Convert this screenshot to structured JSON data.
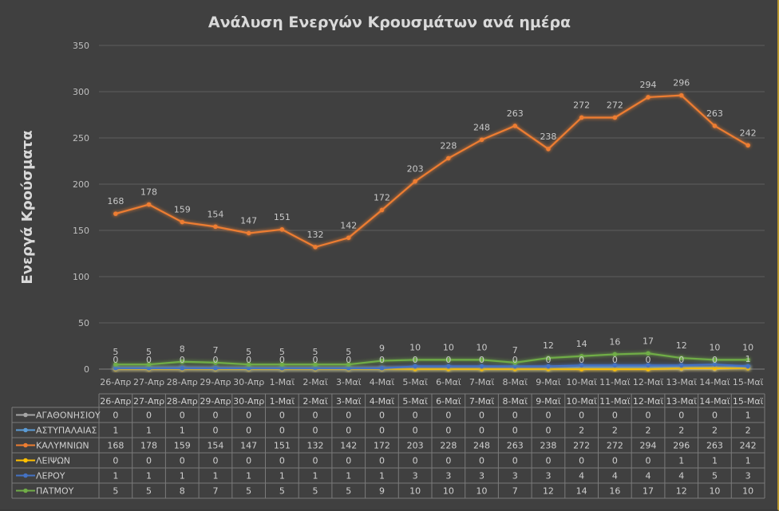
{
  "chart_data": {
    "type": "line",
    "title": "Ανάλυση Ενεργών Κρουσμάτων ανά ημέρα",
    "xlabel": "",
    "ylabel": "Ενεργά Κρούσματα",
    "ylim": [
      0,
      350
    ],
    "yticks": [
      0,
      50,
      100,
      150,
      200,
      250,
      300,
      350
    ],
    "grid": true,
    "legend": "data-table-below",
    "categories": [
      "26-Απρ",
      "27-Απρ",
      "28-Απρ",
      "29-Απρ",
      "30-Απρ",
      "1-Μαϊ",
      "2-Μαϊ",
      "3-Μαϊ",
      "4-Μαϊ",
      "5-Μαϊ",
      "6-Μαϊ",
      "7-Μαϊ",
      "8-Μαϊ",
      "9-Μαϊ",
      "10-Μαϊ",
      "11-Μαϊ",
      "12-Μαϊ",
      "13-Μαϊ",
      "14-Μαϊ",
      "15-Μαϊ"
    ],
    "series": [
      {
        "name": "ΑΓΑΘΟΝΗΣΙΟΥ",
        "color": "#a6a6a6",
        "labels": true,
        "values": [
          0,
          0,
          0,
          0,
          0,
          0,
          0,
          0,
          0,
          0,
          0,
          0,
          0,
          0,
          0,
          0,
          0,
          0,
          0,
          1
        ]
      },
      {
        "name": "ΑΣΤΥΠΑΛΑΙΑΣ",
        "color": "#5b9bd5",
        "labels": false,
        "values": [
          1,
          1,
          1,
          0,
          0,
          0,
          0,
          0,
          0,
          0,
          0,
          0,
          0,
          0,
          2,
          2,
          2,
          2,
          2,
          2
        ]
      },
      {
        "name": "ΚΑΛΥΜΝΙΩΝ",
        "color": "#ed7d31",
        "labels": true,
        "values": [
          168,
          178,
          159,
          154,
          147,
          151,
          132,
          142,
          172,
          203,
          228,
          248,
          263,
          238,
          272,
          272,
          294,
          296,
          263,
          242
        ]
      },
      {
        "name": "ΛΕΙΨΩΝ",
        "color": "#ffc000",
        "labels": false,
        "values": [
          0,
          0,
          0,
          0,
          0,
          0,
          0,
          0,
          0,
          0,
          0,
          0,
          0,
          0,
          0,
          0,
          0,
          1,
          1,
          1
        ]
      },
      {
        "name": "ΛΕΡΟΥ",
        "color": "#4472c4",
        "labels": false,
        "values": [
          1,
          1,
          1,
          1,
          1,
          1,
          1,
          1,
          1,
          3,
          3,
          3,
          3,
          3,
          4,
          4,
          4,
          4,
          5,
          3
        ]
      },
      {
        "name": "ΠΑΤΜΟΥ",
        "color": "#70ad47",
        "labels": true,
        "values": [
          5,
          5,
          8,
          7,
          5,
          5,
          5,
          5,
          9,
          10,
          10,
          10,
          7,
          12,
          14,
          16,
          17,
          12,
          10,
          10
        ]
      }
    ]
  }
}
